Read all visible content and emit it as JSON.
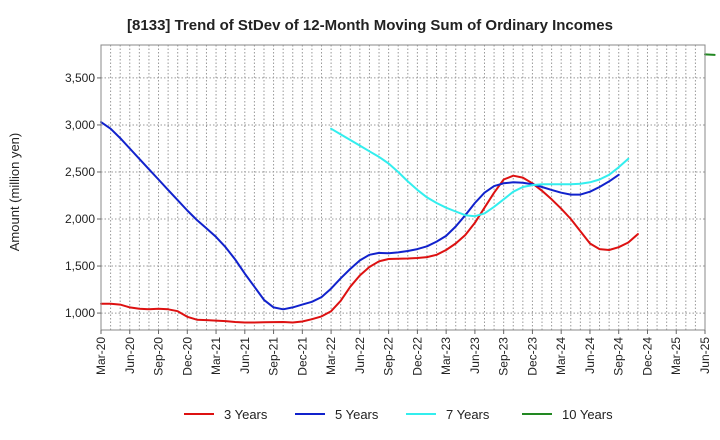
{
  "chart_data": {
    "type": "line",
    "title": "[8133]  Trend of StDev of 12-Month Moving Sum of Ordinary Incomes",
    "xlabel": "",
    "ylabel": "Amount (million yen)",
    "ylim": [
      820,
      3850
    ],
    "yticks": [
      1000,
      1500,
      2000,
      2500,
      3000,
      3500
    ],
    "ytick_labels": [
      "1,000",
      "1,500",
      "2,000",
      "2,500",
      "3,000",
      "3,500"
    ],
    "xticks": [
      "Mar-20",
      "Jun-20",
      "Sep-20",
      "Dec-20",
      "Mar-21",
      "Jun-21",
      "Sep-21",
      "Dec-21",
      "Mar-22",
      "Jun-22",
      "Sep-22",
      "Dec-22",
      "Mar-23",
      "Jun-23",
      "Sep-23",
      "Dec-23",
      "Mar-24",
      "Jun-24",
      "Sep-24",
      "Dec-24",
      "Mar-25",
      "Jun-25"
    ],
    "grid": true,
    "legend_position": "bottom",
    "series": [
      {
        "name": "3 Years",
        "color": "#dd1111",
        "start_index": 0,
        "values": [
          1100,
          1100,
          1090,
          1060,
          1045,
          1040,
          1045,
          1040,
          1020,
          960,
          930,
          925,
          920,
          915,
          905,
          900,
          900,
          902,
          904,
          905,
          900,
          910,
          935,
          965,
          1020,
          1130,
          1280,
          1400,
          1490,
          1550,
          1575,
          1578,
          1580,
          1585,
          1595,
          1620,
          1670,
          1740,
          1830,
          1960,
          2120,
          2280,
          2420,
          2460,
          2440,
          2380,
          2300,
          2210,
          2110,
          2000,
          1870,
          1740,
          1680,
          1670,
          1700,
          1750,
          1840
        ]
      },
      {
        "name": "5 Years",
        "color": "#1122cc",
        "start_index": 0,
        "values": [
          3030,
          2960,
          2860,
          2750,
          2640,
          2530,
          2420,
          2310,
          2200,
          2090,
          1990,
          1900,
          1810,
          1700,
          1570,
          1420,
          1280,
          1140,
          1060,
          1040,
          1060,
          1090,
          1120,
          1170,
          1260,
          1370,
          1470,
          1560,
          1620,
          1640,
          1635,
          1645,
          1660,
          1680,
          1710,
          1760,
          1820,
          1920,
          2040,
          2170,
          2280,
          2350,
          2380,
          2390,
          2385,
          2370,
          2340,
          2310,
          2280,
          2260,
          2260,
          2290,
          2340,
          2400,
          2470
        ]
      },
      {
        "name": "7 Years",
        "color": "#33eeee",
        "start_index": 24,
        "values": [
          2960,
          2900,
          2840,
          2780,
          2720,
          2660,
          2590,
          2500,
          2400,
          2310,
          2230,
          2170,
          2120,
          2080,
          2040,
          2030,
          2060,
          2130,
          2210,
          2290,
          2340,
          2360,
          2370,
          2370,
          2370,
          2370,
          2375,
          2390,
          2420,
          2470,
          2550,
          2640
        ]
      },
      {
        "name": "10 Years",
        "color": "#228822",
        "start_index": 63,
        "values": [
          3750,
          3745
        ]
      }
    ]
  }
}
